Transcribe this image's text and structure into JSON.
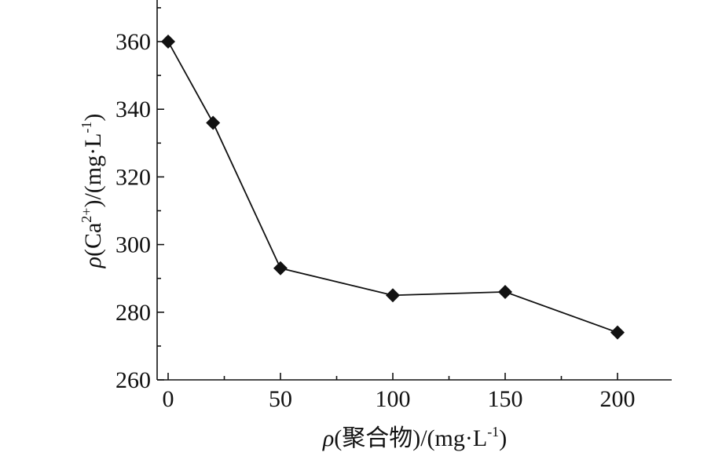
{
  "chart_data": {
    "type": "line",
    "title": "",
    "xlabel": {
      "symbol": "ρ",
      "text": "(聚合物)/(mg·L",
      "sup": "-1",
      "close": ")"
    },
    "ylabel": {
      "symbol": "ρ",
      "text_a": "(Ca",
      "sup_a": "2+",
      "text_b": ")/(mg·L",
      "sup_b": "-1",
      "close": ")"
    },
    "xlim": [
      0,
      225
    ],
    "ylim": [
      260,
      370
    ],
    "xticks": [
      0,
      50,
      100,
      150,
      200
    ],
    "yticks": [
      260,
      280,
      300,
      320,
      340,
      360
    ],
    "grid": false,
    "legend": "none",
    "marker": "diamond",
    "series": [
      {
        "x": [
          0,
          20,
          50,
          100,
          150,
          200
        ],
        "values": [
          360,
          336,
          293,
          285,
          286,
          274
        ]
      }
    ],
    "color": "#111111"
  }
}
